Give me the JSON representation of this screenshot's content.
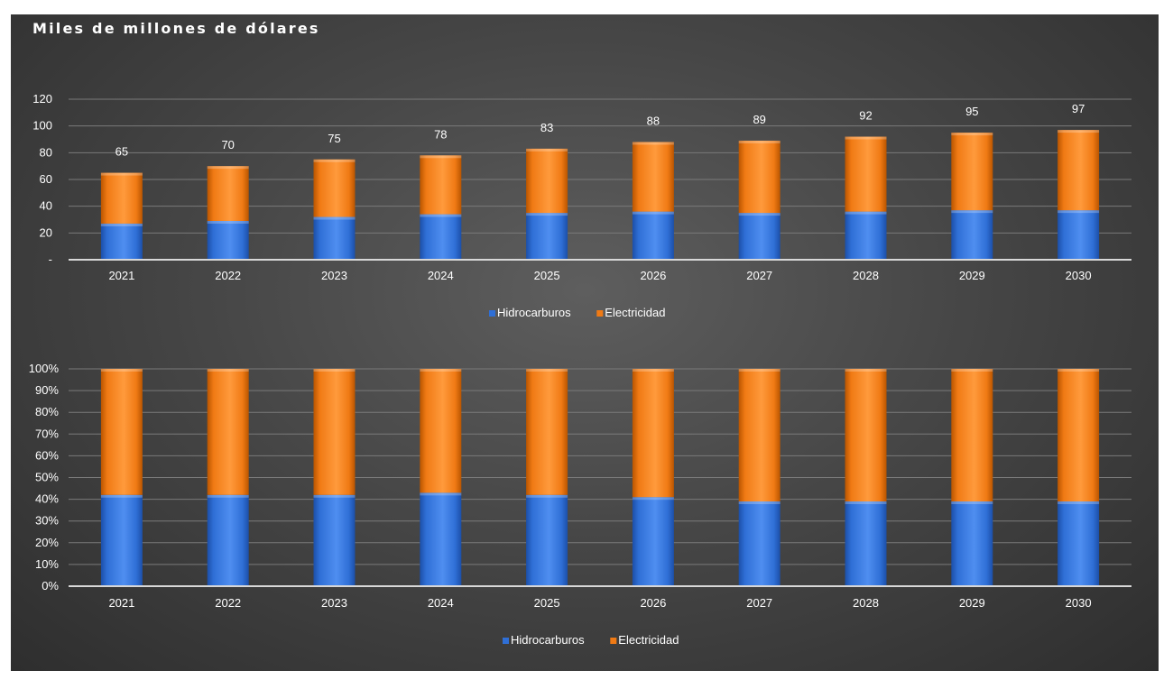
{
  "title": "Miles de millones de dólares",
  "colors": {
    "hidrocarburos": "#2f6fd6",
    "electricidad": "#f07a14",
    "background": "#474747",
    "text": "#ffffff",
    "grid": "#7a7a7a"
  },
  "chart_data": [
    {
      "type": "bar",
      "stacked": true,
      "categories": [
        "2021",
        "2022",
        "2023",
        "2024",
        "2025",
        "2026",
        "2027",
        "2028",
        "2029",
        "2030"
      ],
      "series": [
        {
          "name": "Hidrocarburos",
          "values": [
            27,
            29,
            32,
            34,
            35,
            36,
            35,
            36,
            37,
            37
          ]
        },
        {
          "name": "Electricidad",
          "values": [
            38,
            41,
            43,
            44,
            48,
            52,
            54,
            56,
            58,
            60
          ]
        }
      ],
      "totals": [
        65,
        70,
        75,
        78,
        83,
        88,
        89,
        92,
        95,
        97
      ],
      "ylim": [
        0,
        120
      ],
      "yticks": [
        "-",
        "20",
        "40",
        "60",
        "80",
        "100",
        "120"
      ],
      "grid": true,
      "legend_position": "bottom"
    },
    {
      "type": "bar",
      "stacked": true,
      "percent": true,
      "categories": [
        "2021",
        "2022",
        "2023",
        "2024",
        "2025",
        "2026",
        "2027",
        "2028",
        "2029",
        "2030"
      ],
      "series": [
        {
          "name": "Hidrocarburos",
          "values": [
            0.42,
            0.42,
            0.42,
            0.43,
            0.42,
            0.41,
            0.39,
            0.39,
            0.39,
            0.39
          ]
        },
        {
          "name": "Electricidad",
          "values": [
            0.58,
            0.58,
            0.58,
            0.57,
            0.58,
            0.59,
            0.61,
            0.61,
            0.61,
            0.61
          ]
        }
      ],
      "ylim": [
        0,
        1
      ],
      "yticks": [
        "0%",
        "10%",
        "20%",
        "30%",
        "40%",
        "50%",
        "60%",
        "70%",
        "80%",
        "90%",
        "100%"
      ],
      "grid": true,
      "legend_position": "bottom"
    }
  ]
}
